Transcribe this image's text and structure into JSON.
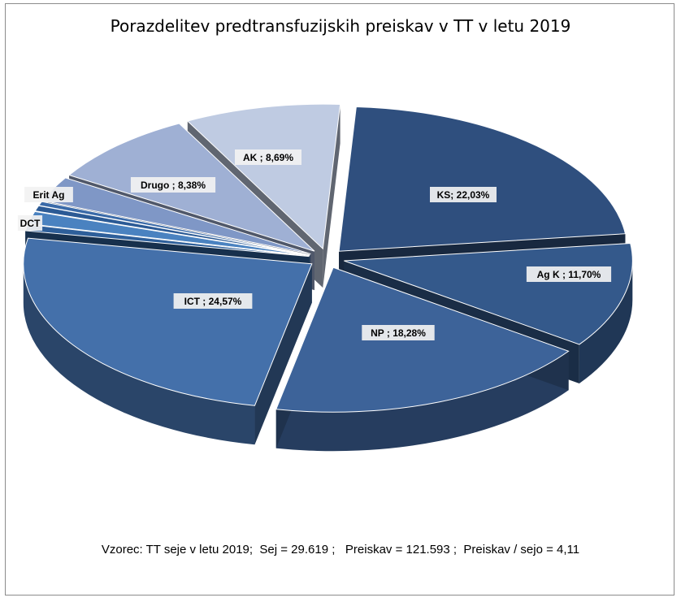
{
  "chart_data": {
    "type": "pie",
    "title": "Porazdelitev predtransfuzijskih preiskav v TT v letu 2019",
    "slices": [
      {
        "name": "KS",
        "label": "KS; 22,03%",
        "value": 22.03,
        "color": "#2f4f7e"
      },
      {
        "name": "Ag K",
        "label": "Ag K ; 11,70%",
        "value": 11.7,
        "color": "#34598b"
      },
      {
        "name": "NP",
        "label": "NP ; 18,28%",
        "value": 18.28,
        "color": "#3d6399"
      },
      {
        "name": "ICT",
        "label": "ICT ; 24,57%",
        "value": 24.57,
        "color": "#4470aa"
      },
      {
        "name": "",
        "label": "",
        "value": 0.7,
        "color": "#2e5f9a"
      },
      {
        "name": "",
        "label": "",
        "value": 1.4,
        "color": "#4a82c0"
      },
      {
        "name": "DCT",
        "label": "DCT",
        "value": 0.6,
        "color": "#2b5a95"
      },
      {
        "name": "",
        "label": "",
        "value": 0.45,
        "color": "#3a6aa8"
      },
      {
        "name": "Erit Ag",
        "label": "Erit Ag",
        "value": 2.8,
        "color": "#7f97c6"
      },
      {
        "name": "Drugo",
        "label": "Drugo ; 8,38%",
        "value": 8.38,
        "color": "#9fb0d4"
      },
      {
        "name": "AK",
        "label": "AK ; 8,69%",
        "value": 8.69,
        "color": "#bfcbe2"
      }
    ]
  },
  "footer": "Vzorec: TT seje v letu 2019;  Sej = 29.619 ;   Preiskav = 121.593 ;  Preiskav / sejo = 4,11"
}
